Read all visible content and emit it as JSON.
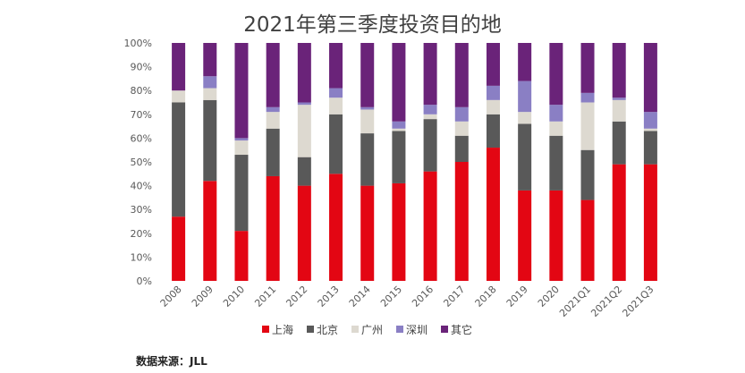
{
  "chart_data": {
    "type": "bar",
    "stacked": "percent",
    "title": "2021年第三季度投资目的地",
    "categories": [
      "2008",
      "2009",
      "2010",
      "2011",
      "2012",
      "2013",
      "2014",
      "2015",
      "2016",
      "2017",
      "2018",
      "2019",
      "2020",
      "2021Q1",
      "2021Q2",
      "2021Q3"
    ],
    "series": [
      {
        "name": "上海",
        "color": "#e30613",
        "values": [
          27,
          42,
          21,
          44,
          40,
          45,
          40,
          41,
          46,
          50,
          56,
          38,
          38,
          34,
          49,
          49
        ]
      },
      {
        "name": "北京",
        "color": "#595959",
        "values": [
          48,
          34,
          32,
          20,
          12,
          25,
          22,
          22,
          22,
          11,
          14,
          28,
          23,
          21,
          18,
          14
        ]
      },
      {
        "name": "广州",
        "color": "#ddd9d0",
        "values": [
          5,
          5,
          6,
          7,
          22,
          7,
          10,
          1,
          2,
          6,
          6,
          5,
          6,
          20,
          9,
          1
        ]
      },
      {
        "name": "深圳",
        "color": "#8a7fc4",
        "values": [
          0,
          5,
          1,
          2,
          1,
          4,
          1,
          3,
          4,
          6,
          6,
          13,
          7,
          4,
          1,
          7
        ]
      },
      {
        "name": "其它",
        "color": "#6a2379",
        "values": [
          20,
          14,
          40,
          27,
          25,
          19,
          27,
          33,
          26,
          27,
          18,
          16,
          26,
          21,
          23,
          29
        ]
      }
    ],
    "ylim": [
      0,
      100
    ],
    "yticks": [
      "0%",
      "10%",
      "20%",
      "30%",
      "40%",
      "50%",
      "60%",
      "70%",
      "80%",
      "90%",
      "100%"
    ],
    "grid": false,
    "legend_position": "bottom"
  },
  "source_note": "数据来源：JLL"
}
